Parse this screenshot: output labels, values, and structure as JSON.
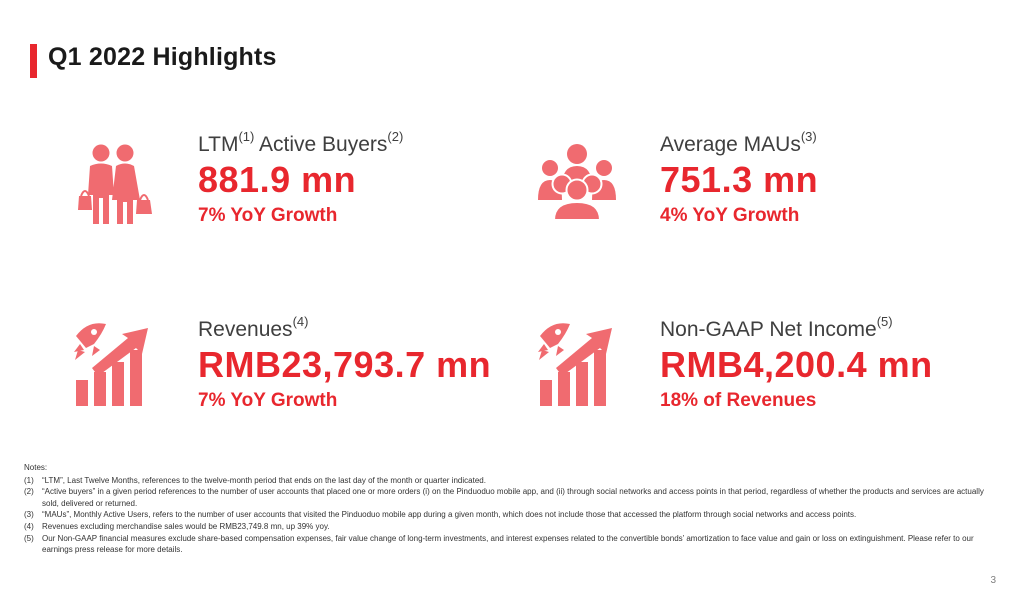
{
  "page": {
    "title": "Q1 2022 Highlights",
    "page_number": "3",
    "accent_color": "#e8272e",
    "icon_color": "#f06b70"
  },
  "metrics": [
    {
      "label": "LTM",
      "label_sup1": "(1)",
      "label_rest": " Active Buyers",
      "label_sup2": "(2)",
      "value": "881.9 mn",
      "sub": "7% YoY Growth",
      "icon": "shoppers-icon"
    },
    {
      "label": "Average MAUs",
      "label_sup": "(3)",
      "value": "751.3 mn",
      "sub": "4% YoY Growth",
      "icon": "users-group-icon"
    },
    {
      "label": "Revenues",
      "label_sup": "(4)",
      "value": "RMB23,793.7 mn",
      "sub": "7% YoY Growth",
      "icon": "rocket-growth-chart-icon"
    },
    {
      "label": "Non-GAAP Net Income",
      "label_sup": "(5)",
      "value": "RMB4,200.4 mn",
      "sub": "18% of Revenues",
      "icon": "rocket-growth-chart-icon"
    }
  ],
  "notes": {
    "heading": "Notes:",
    "items": [
      {
        "num": "(1)",
        "text": "“LTM”, Last Twelve Months, references to the twelve-month period that ends on the last day of the month or quarter indicated."
      },
      {
        "num": "(2)",
        "text": "“Active buyers” in a given period references to the number of user accounts that placed one or more orders (i) on the Pinduoduo mobile app, and (ii) through social networks and access points in that period, regardless of whether the products and services are actually sold, delivered or returned."
      },
      {
        "num": "(3)",
        "text": "“MAUs”, Monthly Active Users, refers to the number of user accounts that visited the Pinduoduo mobile app during a given month, which does not include those that accessed the platform through social networks and access points."
      },
      {
        "num": "(4)",
        "text": "Revenues excluding merchandise sales would be RMB23,749.8 mn, up 39% yoy."
      },
      {
        "num": "(5)",
        "text": "Our Non-GAAP financial measures exclude share-based compensation expenses, fair value change of long-term investments, and interest expenses related to the convertible bonds’ amortization to face value and gain or loss on extinguishment. Please refer to our earnings press release for more details."
      }
    ]
  }
}
